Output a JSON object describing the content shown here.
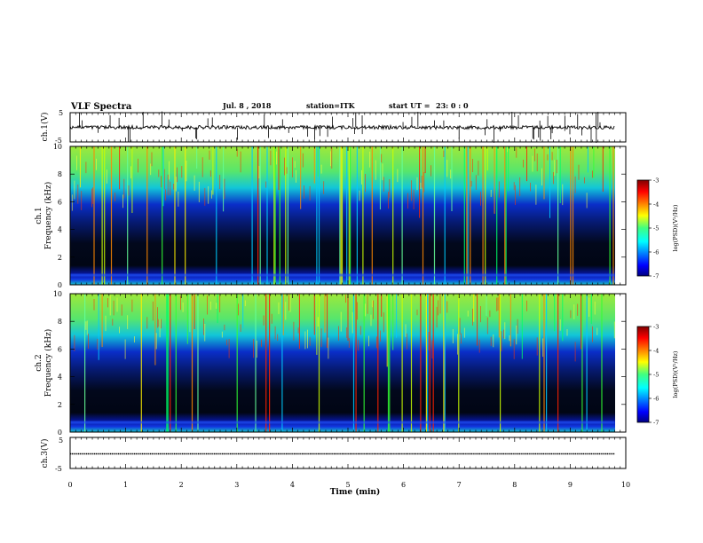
{
  "header": {
    "title": "VLF Spectra",
    "date": "Jul. 8 , 2018",
    "station": "station=ITK",
    "start_label": "start  UT =",
    "start_value": "23: 0 : 0"
  },
  "chart_data": {
    "type": "heatmap",
    "title": "VLF Spectra",
    "xlabel": "Time (min)",
    "xlim": [
      0,
      10
    ],
    "x_ticks": [
      "0",
      "1",
      "2",
      "3",
      "4",
      "5",
      "6",
      "7",
      "8",
      "9",
      "10"
    ],
    "colormap": "jet",
    "colorbar_label": "log(PSD)(V²/Hz)",
    "colorbar_range": [
      -7,
      -3
    ],
    "colorbar_ticks": [
      "-3",
      "-4",
      "-5",
      "-6",
      "-7"
    ],
    "panels": [
      {
        "kind": "waveform",
        "ylabel": "ch.1(V)",
        "ylim": [
          -5,
          5
        ],
        "y_ticks": [
          "5",
          "-5"
        ]
      },
      {
        "kind": "spectrogram",
        "ylabel_1": "ch.1",
        "ylabel_2": "Frequency (kHz)",
        "ylim": [
          0,
          10
        ],
        "y_ticks": [
          "10",
          "8",
          "6",
          "4",
          "2",
          "0"
        ]
      },
      {
        "kind": "spectrogram",
        "ylabel_1": "ch.2",
        "ylabel_2": "Frequency (kHz)",
        "ylim": [
          0,
          10
        ],
        "y_ticks": [
          "10",
          "8",
          "6",
          "4",
          "2",
          "0"
        ]
      },
      {
        "kind": "waveform",
        "ylabel": "ch.3(V)",
        "ylim": [
          -5,
          5
        ],
        "y_ticks": [
          "5",
          "-5"
        ]
      }
    ],
    "data_end_min": 9.8
  }
}
